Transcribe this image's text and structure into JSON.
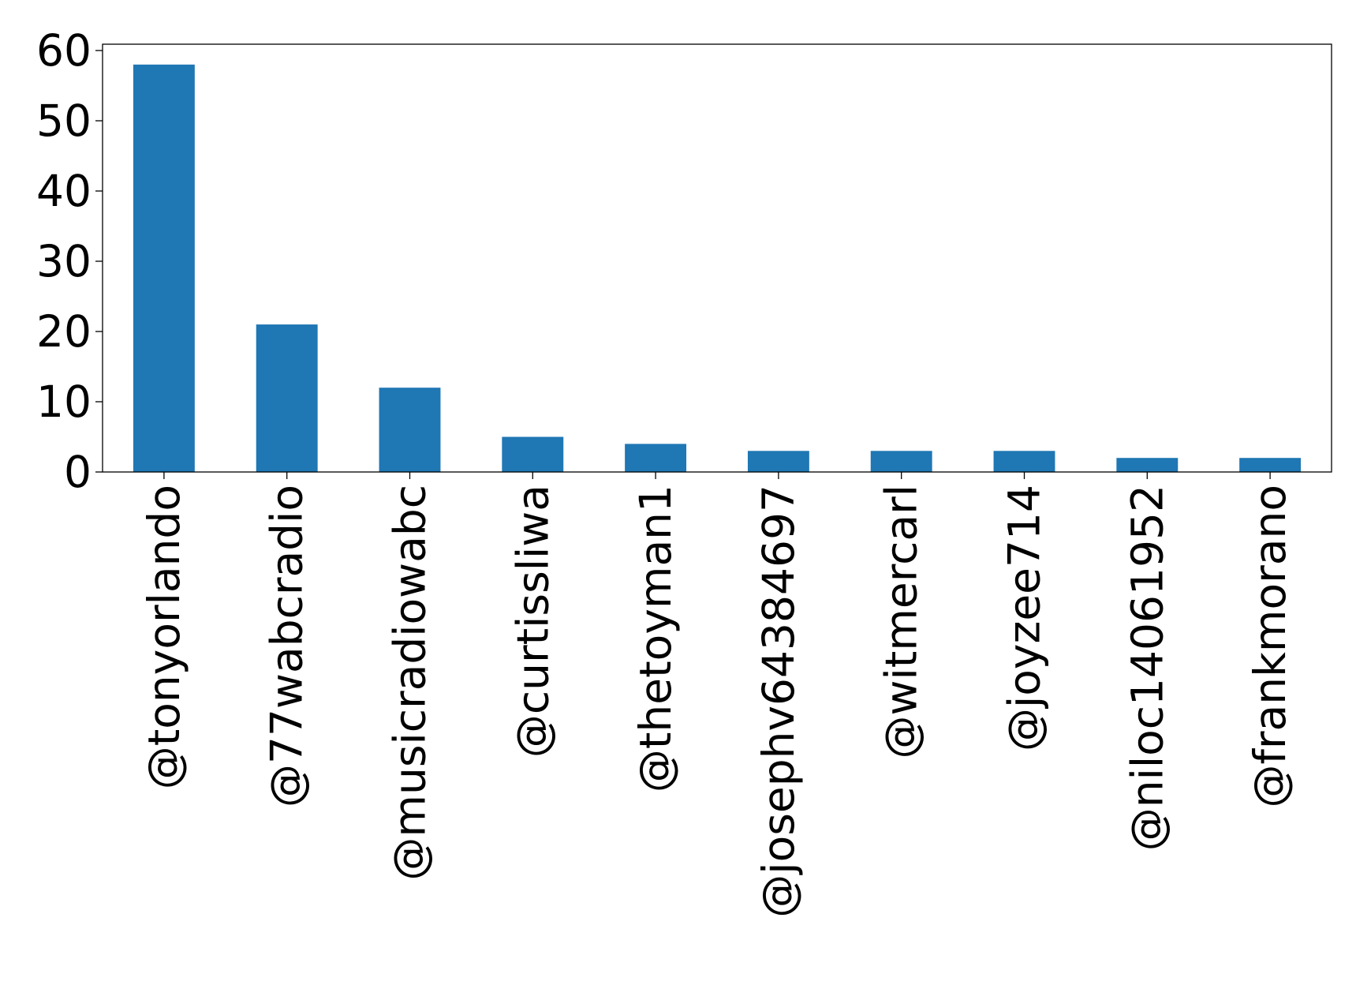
{
  "chart_data": {
    "type": "bar",
    "title": "",
    "xlabel": "",
    "ylabel": "",
    "categories": [
      "@tonyorlando",
      "@77wabcradio",
      "@musicradiowabc",
      "@curtissliwa",
      "@thetoyman1",
      "@josephv64384697",
      "@witmercarl",
      "@joyzee714",
      "@niloc14061952",
      "@frankmorano"
    ],
    "values": [
      58,
      21,
      12,
      5,
      4,
      3,
      3,
      3,
      2,
      2
    ],
    "ylim": [
      0,
      60.9
    ],
    "yticks": [
      0,
      10,
      20,
      30,
      40,
      50,
      60
    ],
    "bar_color": "#1f77b4",
    "grid": false,
    "legend": "none"
  }
}
